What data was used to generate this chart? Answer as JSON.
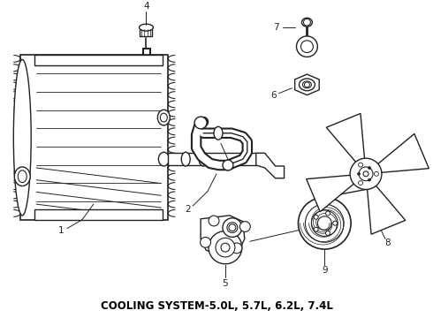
{
  "title": "COOLING SYSTEM-5.0L, 5.7L, 6.2L, 7.4L",
  "background_color": "#ffffff",
  "title_color": "#000000",
  "title_fontsize": 8.5,
  "title_fontweight": "bold",
  "line_color": "#222222",
  "fig_width": 4.9,
  "fig_height": 3.6,
  "dpi": 100
}
